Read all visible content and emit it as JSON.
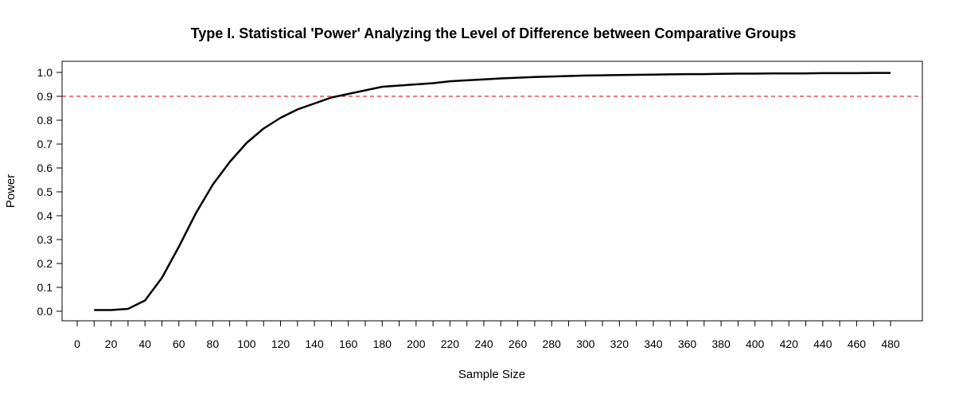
{
  "chart_data": {
    "type": "line",
    "title": "Type I. Statistical 'Power' Analyzing the Level of Difference between Comparative Groups",
    "xlabel": "Sample Size",
    "ylabel": "Power",
    "xlim": [
      0,
      480
    ],
    "ylim": [
      0.0,
      1.0
    ],
    "grid": false,
    "legend": "none",
    "x_ticks": [
      0,
      10,
      20,
      30,
      40,
      50,
      60,
      70,
      80,
      90,
      100,
      110,
      120,
      130,
      140,
      150,
      160,
      170,
      180,
      190,
      200,
      210,
      220,
      230,
      240,
      250,
      260,
      270,
      280,
      290,
      300,
      310,
      320,
      330,
      340,
      350,
      360,
      370,
      380,
      390,
      400,
      410,
      420,
      430,
      440,
      450,
      460,
      470,
      480
    ],
    "x_tick_labels": [
      "0",
      "20",
      "40",
      "60",
      "80",
      "100",
      "120",
      "140",
      "160",
      "180",
      "200",
      "220",
      "240",
      "260",
      "280",
      "300",
      "320",
      "340",
      "360",
      "380",
      "400",
      "420",
      "440",
      "460",
      "480"
    ],
    "y_ticks": [
      0.0,
      0.1,
      0.2,
      0.3,
      0.4,
      0.5,
      0.6,
      0.7,
      0.8,
      0.9,
      1.0
    ],
    "y_tick_labels": [
      "0.0",
      "0.1",
      "0.2",
      "0.3",
      "0.4",
      "0.5",
      "0.6",
      "0.7",
      "0.8",
      "0.9",
      "1.0"
    ],
    "reference_line": {
      "y": 0.9,
      "color": "#cc0000",
      "style": "dashed"
    },
    "series": [
      {
        "color": "#000000",
        "x": [
          10,
          20,
          30,
          40,
          50,
          60,
          70,
          80,
          90,
          100,
          110,
          120,
          130,
          140,
          150,
          160,
          170,
          180,
          190,
          200,
          210,
          220,
          230,
          240,
          250,
          260,
          270,
          280,
          290,
          300,
          310,
          320,
          330,
          340,
          350,
          360,
          370,
          380,
          390,
          400,
          410,
          420,
          430,
          440,
          450,
          460,
          470,
          480
        ],
        "values": [
          0.005,
          0.005,
          0.01,
          0.045,
          0.14,
          0.27,
          0.41,
          0.53,
          0.625,
          0.705,
          0.765,
          0.81,
          0.845,
          0.87,
          0.895,
          0.91,
          0.925,
          0.94,
          0.945,
          0.95,
          0.955,
          0.963,
          0.967,
          0.971,
          0.975,
          0.978,
          0.981,
          0.983,
          0.985,
          0.987,
          0.988,
          0.989,
          0.99,
          0.991,
          0.992,
          0.993,
          0.993,
          0.994,
          0.995,
          0.995,
          0.996,
          0.996,
          0.996,
          0.997,
          0.997,
          0.997,
          0.998,
          0.998
        ]
      }
    ]
  }
}
